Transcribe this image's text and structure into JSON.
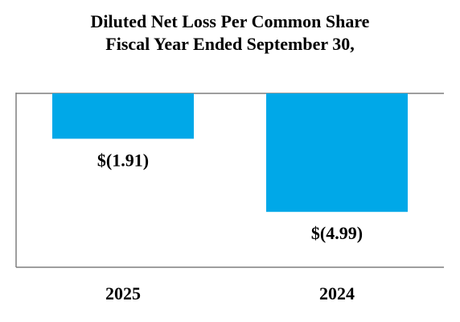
{
  "chart_data": {
    "type": "bar",
    "title": "Diluted Net Loss Per Common Share",
    "subtitle": "Fiscal Year Ended September 30,",
    "categories": [
      "2025",
      "2024"
    ],
    "values": [
      -1.91,
      -4.99
    ],
    "data_labels": [
      "$(1.91)",
      "$(4.99)"
    ],
    "ylim": [
      -6.9,
      0
    ],
    "bar_color": "#00a8e8",
    "axis_color": "#7f7f7f",
    "grid": false,
    "legend": "none"
  }
}
